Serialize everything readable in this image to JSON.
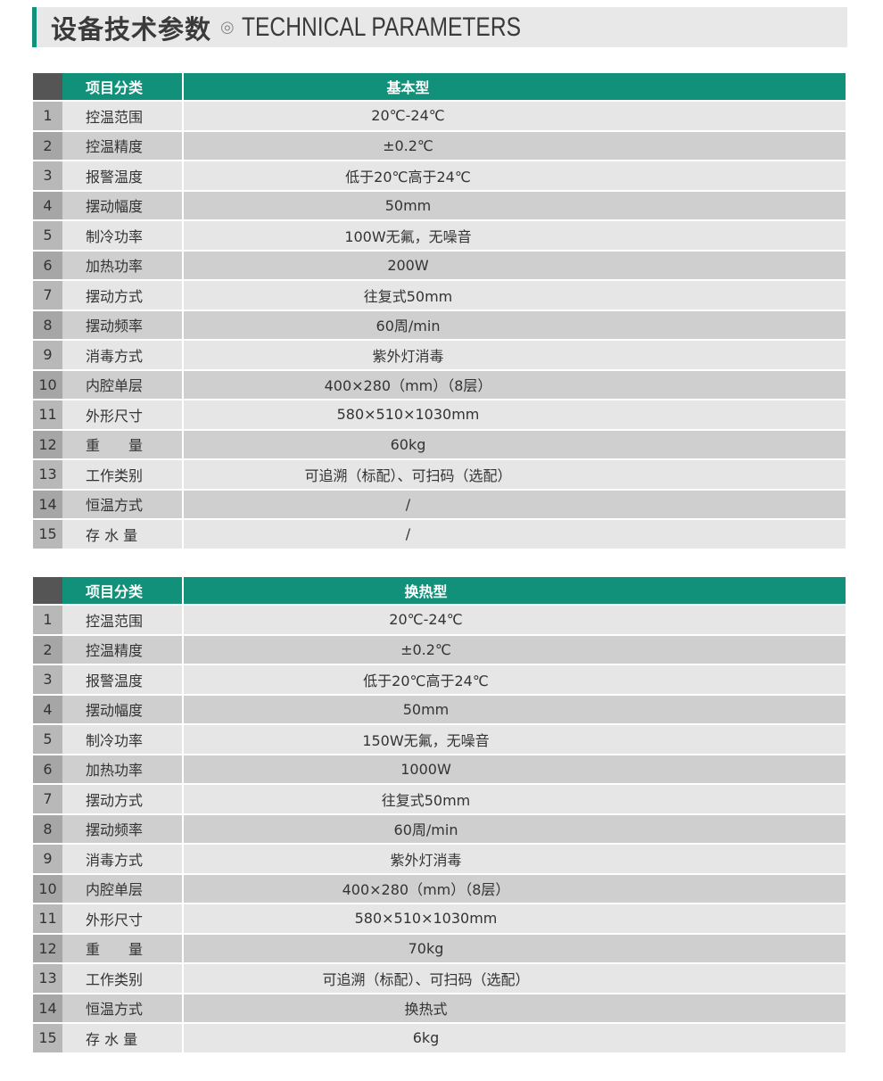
{
  "title": {
    "cn": "设备技术参数",
    "symbol": "◎",
    "en": "TECHNICAL PARAMETERS"
  },
  "colors": {
    "accent": "#12917a",
    "header_num": "#555555"
  },
  "tables": [
    {
      "header": {
        "label": "项目分类",
        "value": "基本型"
      },
      "rows": [
        {
          "num": "1",
          "label": "控温范围",
          "value": "20℃-24℃"
        },
        {
          "num": "2",
          "label": "控温精度",
          "value": "±0.2℃"
        },
        {
          "num": "3",
          "label": "报警温度",
          "value": "低于20℃高于24℃"
        },
        {
          "num": "4",
          "label": "摆动幅度",
          "value": "50mm"
        },
        {
          "num": "5",
          "label": "制冷功率",
          "value": "100W无氟，无噪音"
        },
        {
          "num": "6",
          "label": "加热功率",
          "value": "200W"
        },
        {
          "num": "7",
          "label": "摆动方式",
          "value": "往复式50mm"
        },
        {
          "num": "8",
          "label": "摆动频率",
          "value": "60周/min"
        },
        {
          "num": "9",
          "label": "消毒方式",
          "value": "紫外灯消毒"
        },
        {
          "num": "10",
          "label": "内腔单层",
          "value": "400×280（mm）（8层）"
        },
        {
          "num": "11",
          "label": "外形尺寸",
          "value": "580×510×1030mm"
        },
        {
          "num": "12",
          "label": "重　　量",
          "value": "60kg"
        },
        {
          "num": "13",
          "label": "工作类别",
          "value": "可追溯（标配）、可扫码（选配）"
        },
        {
          "num": "14",
          "label": "恒温方式",
          "value": "/"
        },
        {
          "num": "15",
          "label": "存 水 量",
          "value": "/"
        }
      ]
    },
    {
      "header": {
        "label": "项目分类",
        "value": "换热型"
      },
      "rows": [
        {
          "num": "1",
          "label": "控温范围",
          "value": "20℃-24℃"
        },
        {
          "num": "2",
          "label": "控温精度",
          "value": "±0.2℃"
        },
        {
          "num": "3",
          "label": "报警温度",
          "value": "低于20℃高于24℃"
        },
        {
          "num": "4",
          "label": "摆动幅度",
          "value": "50mm"
        },
        {
          "num": "5",
          "label": "制冷功率",
          "value": "150W无氟，无噪音"
        },
        {
          "num": "6",
          "label": "加热功率",
          "value": "1000W"
        },
        {
          "num": "7",
          "label": "摆动方式",
          "value": "往复式50mm"
        },
        {
          "num": "8",
          "label": "摆动频率",
          "value": "60周/min"
        },
        {
          "num": "9",
          "label": "消毒方式",
          "value": "紫外灯消毒"
        },
        {
          "num": "10",
          "label": "内腔单层",
          "value": "400×280（mm）（8层）"
        },
        {
          "num": "11",
          "label": "外形尺寸",
          "value": "580×510×1030mm"
        },
        {
          "num": "12",
          "label": "重　　量",
          "value": "70kg"
        },
        {
          "num": "13",
          "label": "工作类别",
          "value": "可追溯（标配）、可扫码（选配）"
        },
        {
          "num": "14",
          "label": "恒温方式",
          "value": "换热式"
        },
        {
          "num": "15",
          "label": "存 水 量",
          "value": "6kg"
        }
      ]
    }
  ]
}
